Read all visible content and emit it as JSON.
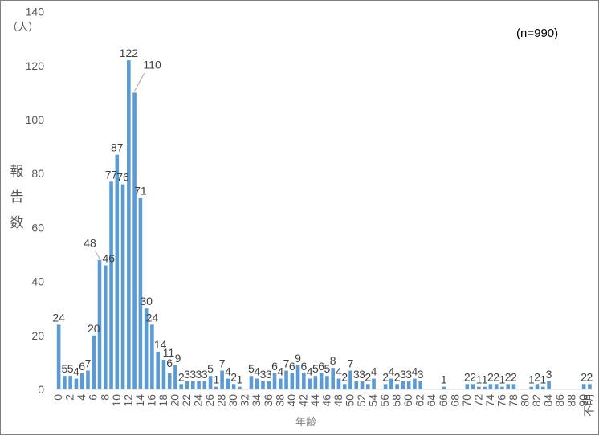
{
  "chart_data": {
    "type": "bar",
    "unit_label": "（人）",
    "ylabel_chars": [
      "報",
      "告",
      "数"
    ],
    "xlabel": "年齢",
    "note": "(n=990)",
    "ylim": [
      0,
      140
    ],
    "yticks": [
      "0",
      "20",
      "40",
      "60",
      "80",
      "100",
      "120",
      "140"
    ],
    "ytick_values": [
      0,
      20,
      40,
      60,
      80,
      100,
      120,
      140
    ],
    "categories": [
      "0",
      "1",
      "2",
      "3",
      "4",
      "5",
      "6",
      "7",
      "8",
      "9",
      "10",
      "11",
      "12",
      "13",
      "14",
      "15",
      "16",
      "17",
      "18",
      "19",
      "20",
      "21",
      "22",
      "23",
      "24",
      "25",
      "26",
      "27",
      "28",
      "29",
      "30",
      "31",
      "32",
      "33",
      "34",
      "35",
      "36",
      "37",
      "38",
      "39",
      "40",
      "41",
      "42",
      "43",
      "44",
      "45",
      "46",
      "47",
      "48",
      "49",
      "50",
      "51",
      "52",
      "53",
      "54",
      "55",
      "56",
      "57",
      "58",
      "59",
      "60",
      "61",
      "62",
      "63",
      "64",
      "65",
      "66",
      "67",
      "68",
      "69",
      "70",
      "71",
      "72",
      "73",
      "74",
      "75",
      "76",
      "77",
      "78",
      "79",
      "80",
      "81",
      "82",
      "83",
      "84",
      "85",
      "86",
      "87",
      "88",
      "89",
      "90",
      "不明"
    ],
    "xtick_labels": [
      "0",
      "2",
      "4",
      "6",
      "8",
      "10",
      "12",
      "14",
      "16",
      "18",
      "20",
      "22",
      "24",
      "26",
      "28",
      "30",
      "32",
      "34",
      "36",
      "38",
      "40",
      "42",
      "44",
      "46",
      "48",
      "50",
      "52",
      "54",
      "56",
      "58",
      "60",
      "62",
      "64",
      "66",
      "68",
      "70",
      "72",
      "74",
      "76",
      "78",
      "80",
      "82",
      "84",
      "86",
      "88",
      "90",
      "不明"
    ],
    "values": [
      24,
      5,
      5,
      4,
      6,
      7,
      20,
      48,
      46,
      77,
      87,
      76,
      122,
      110,
      71,
      30,
      24,
      14,
      11,
      6,
      9,
      2,
      3,
      3,
      3,
      3,
      5,
      1,
      7,
      4,
      2,
      1,
      0,
      5,
      4,
      3,
      3,
      6,
      4,
      7,
      6,
      9,
      6,
      4,
      5,
      6,
      5,
      8,
      4,
      2,
      7,
      3,
      3,
      2,
      4,
      0,
      2,
      4,
      2,
      3,
      3,
      4,
      3,
      0,
      0,
      0,
      1,
      0,
      0,
      0,
      2,
      2,
      1,
      1,
      2,
      2,
      1,
      2,
      2,
      0,
      0,
      1,
      2,
      1,
      3,
      0,
      0,
      0,
      0,
      0,
      2,
      2
    ],
    "data_labels": [
      "24",
      "5",
      "5",
      "4",
      "6",
      "7",
      "20",
      "48",
      "46",
      "77",
      "87",
      "76",
      "122",
      "110",
      "71",
      "30",
      "24",
      "14",
      "11",
      "6",
      "9",
      "2",
      "3",
      "3",
      "3",
      "3",
      "5",
      "1",
      "7",
      "4",
      "2",
      "1",
      "",
      "5",
      "4",
      "3",
      "3",
      "6",
      "4",
      "7",
      "6",
      "9",
      "6",
      "4",
      "5",
      "6",
      "5",
      "8",
      "4",
      "2",
      "7",
      "3",
      "3",
      "2",
      "4",
      "",
      "2",
      "4",
      "2",
      "3",
      "3",
      "4",
      "3",
      "",
      "",
      "",
      "1",
      "",
      "",
      "",
      "2",
      "2",
      "1",
      "1",
      "2",
      "2",
      "1",
      "2",
      "2",
      "",
      "",
      "1",
      "2",
      "1",
      "3",
      "",
      "",
      "",
      "",
      "",
      "2",
      "2"
    ],
    "bar_color": "#5b9bd5",
    "grid": false
  }
}
